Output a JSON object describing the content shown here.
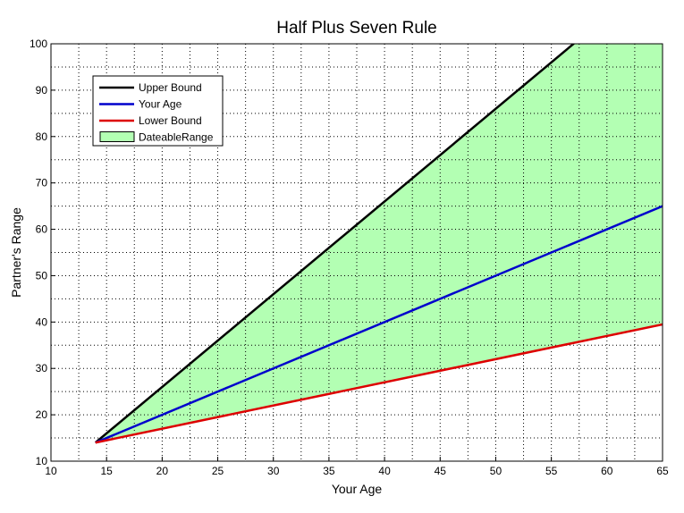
{
  "chart_data": {
    "type": "area",
    "title": "Half Plus Seven Rule",
    "xlabel": "Your Age",
    "ylabel": "Partner's Range",
    "xlim": [
      10,
      65
    ],
    "ylim": [
      10,
      100
    ],
    "xticks": [
      10,
      15,
      20,
      25,
      30,
      35,
      40,
      45,
      50,
      55,
      60,
      65
    ],
    "yticks": [
      10,
      20,
      30,
      40,
      50,
      60,
      70,
      80,
      90,
      100
    ],
    "grid": true,
    "legend_placement": "top-left",
    "x": [
      14,
      65
    ],
    "series": [
      {
        "name": "Upper Bound",
        "formula": "2*(x-7)",
        "x": [
          14,
          65
        ],
        "values": [
          14,
          116
        ],
        "color": "#000000"
      },
      {
        "name": "Your Age",
        "x": [
          14,
          65
        ],
        "values": [
          14,
          65
        ],
        "color": "#0000cc"
      },
      {
        "name": "Lower Bound",
        "formula": "x/2+7",
        "x": [
          14,
          65
        ],
        "values": [
          14,
          39.5
        ],
        "color": "#dd0000"
      }
    ],
    "fill": {
      "name": "DateableRange",
      "between": [
        "Lower Bound",
        "Upper Bound"
      ],
      "color": "#b3ffb3"
    }
  }
}
